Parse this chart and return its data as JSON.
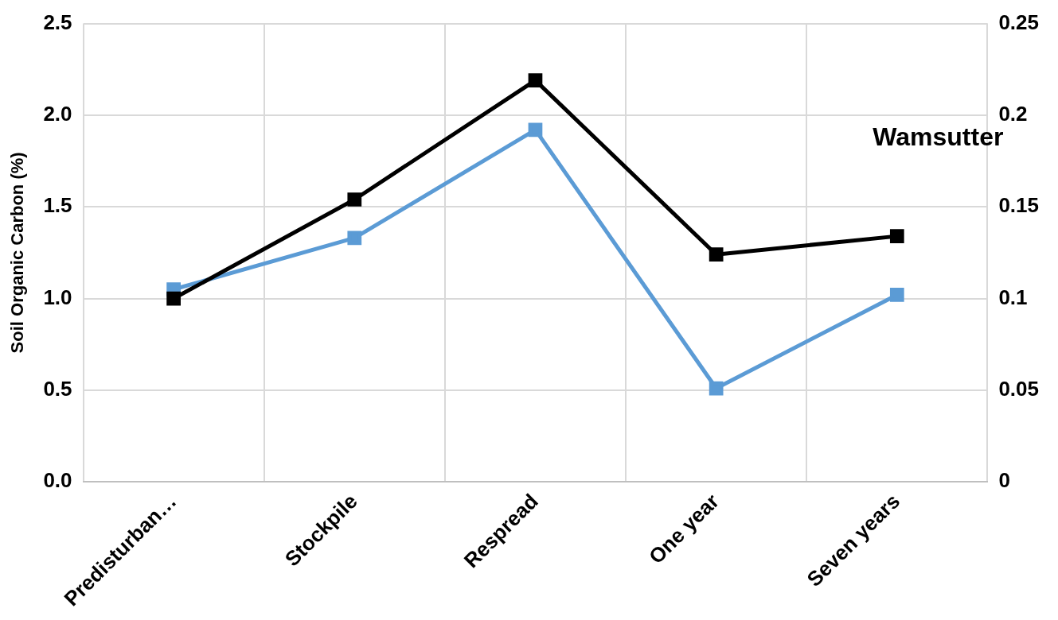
{
  "chart_data": {
    "type": "line",
    "categories": [
      "Predisturban…",
      "Stockpile",
      "Respread",
      "One year",
      "Seven years"
    ],
    "series": [
      {
        "color": "#000000",
        "values": [
          1.0,
          1.54,
          2.19,
          1.24,
          1.34
        ]
      },
      {
        "color": "#5b9bd5",
        "axis": "y2",
        "values": [
          0.105,
          0.133,
          0.192,
          0.051,
          0.102
        ]
      }
    ],
    "ylabel": "Soil Organic Carbon (%)",
    "ylim": [
      0,
      2.5
    ],
    "yticks": [
      {
        "value": 0,
        "label": "0.0"
      },
      {
        "value": 0.5,
        "label": "0.5"
      },
      {
        "value": 1,
        "label": "1.0"
      },
      {
        "value": 1.5,
        "label": "1.5"
      },
      {
        "value": 2,
        "label": "2.0"
      },
      {
        "value": 2.5,
        "label": "2.5"
      }
    ],
    "y2lim": [
      0,
      0.25
    ],
    "y2ticks": [
      0,
      0.05,
      0.1,
      0.15,
      0.2,
      0.25
    ],
    "annotations": [
      "Wamsutter"
    ],
    "grid": true,
    "legend": false,
    "marker": "square",
    "line_style": "solid"
  }
}
